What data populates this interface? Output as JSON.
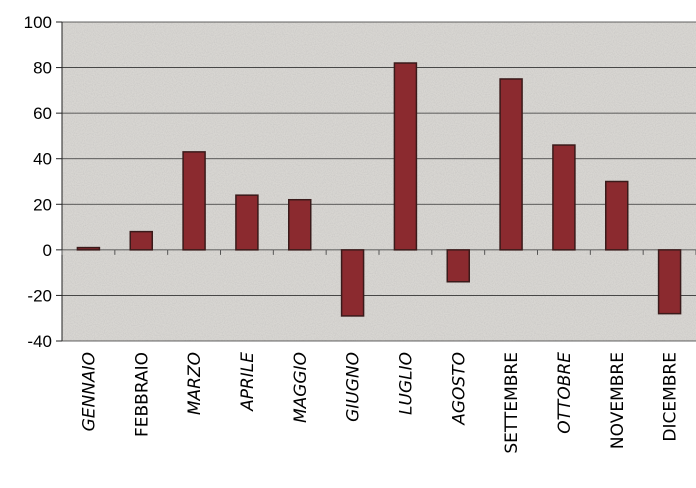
{
  "chart_data": {
    "type": "bar",
    "title": "",
    "xlabel": "",
    "ylabel": "",
    "ylim": [
      -40,
      100
    ],
    "yticks": [
      -40,
      -20,
      0,
      20,
      40,
      60,
      80,
      100
    ],
    "grid": true,
    "legend": "none",
    "categories": [
      "GENNAIO",
      "FEBBRAIO",
      "MARZO",
      "APRILE",
      "MAGGIO",
      "GIUGNO",
      "LUGLIO",
      "AGOSTO",
      "SETTEMBRE",
      "OTTOBRE",
      "NOVEMBRE",
      "DICEMBRE"
    ],
    "italic_categories": [
      "GENNAIO",
      "MARZO",
      "APRILE",
      "MAGGIO",
      "GIUGNO",
      "LUGLIO",
      "AGOSTO",
      "OTTOBRE"
    ],
    "values": [
      1,
      8,
      43,
      24,
      22,
      -29,
      82,
      -14,
      75,
      46,
      30,
      -28
    ],
    "bar_color": "#8b2a2f",
    "bar_outline": "#3a1a1a",
    "plot_background": "#d8d6d2"
  }
}
